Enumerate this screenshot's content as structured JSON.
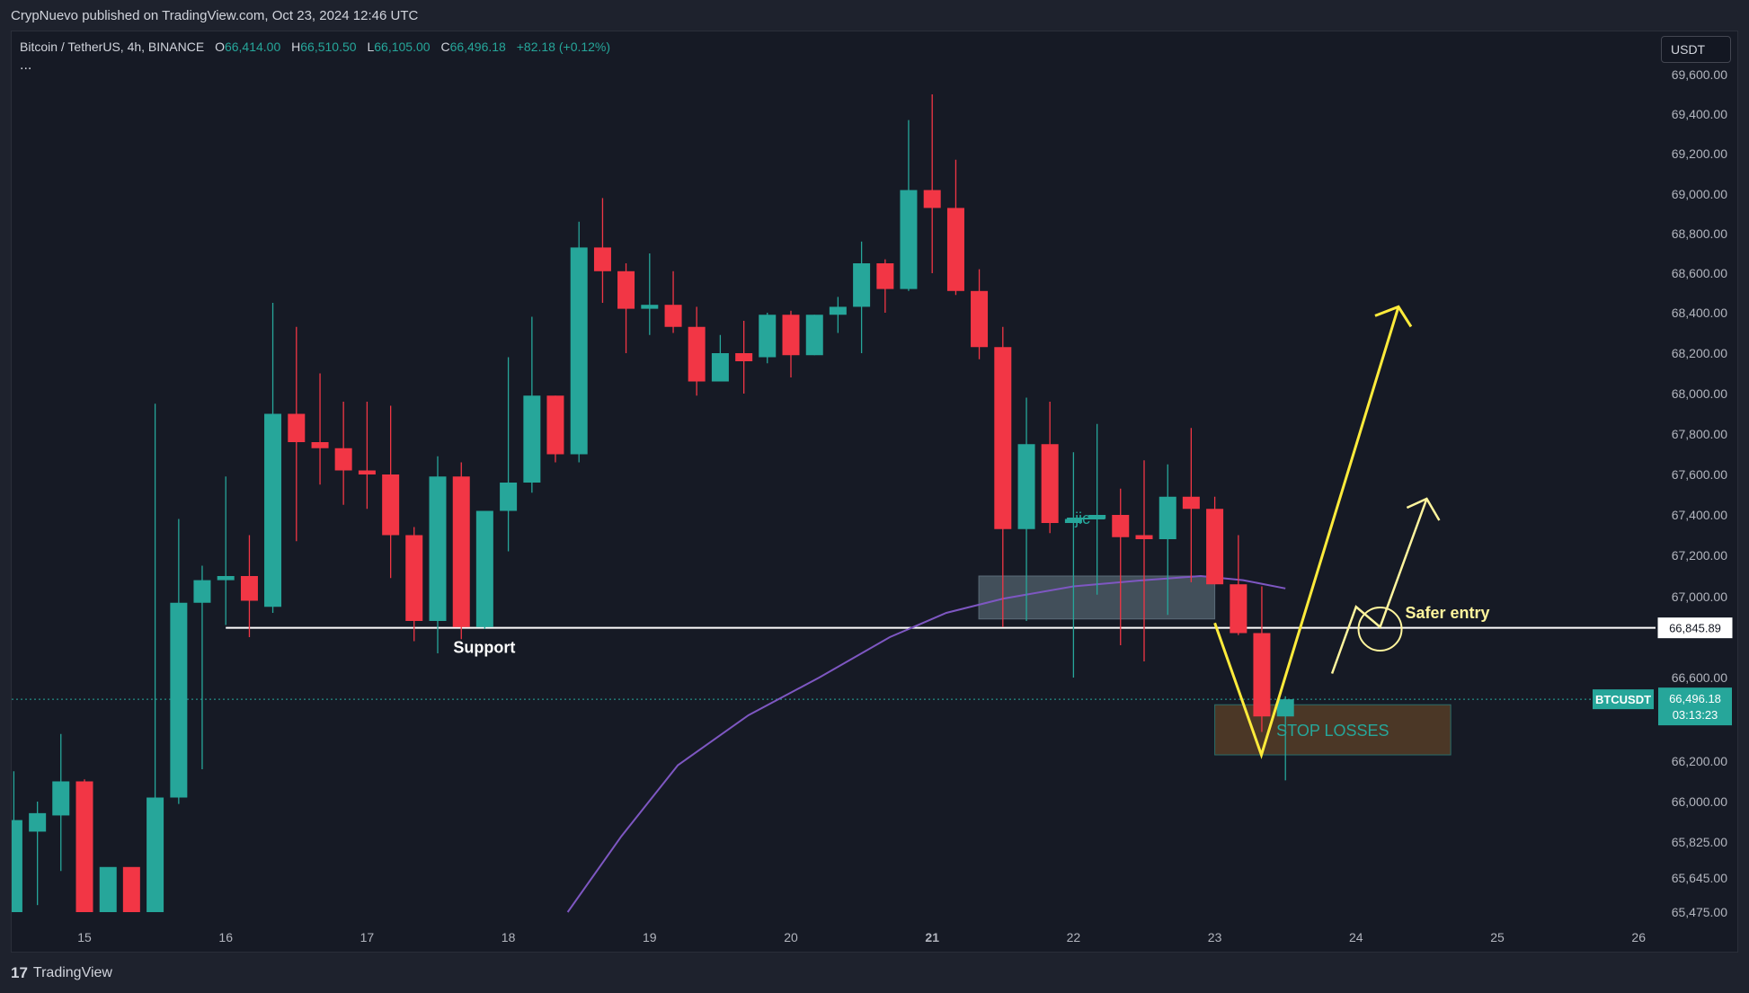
{
  "header": {
    "published_text": "CrypNuevo published on TradingView.com, Oct 23, 2024 12:46 UTC"
  },
  "legend": {
    "symbol": "Bitcoin / TetherUS, 4h, BINANCE",
    "open_label": "O",
    "open_value": "66,414.00",
    "high_label": "H",
    "high_value": "66,510.50",
    "low_label": "L",
    "low_value": "66,105.00",
    "close_label": "C",
    "close_value": "66,496.18",
    "change": "+82.18 (+0.12%)",
    "more": "..."
  },
  "currency_button": "USDT",
  "footer": {
    "logo": "17",
    "brand": "TradingView"
  },
  "colors": {
    "up": "#26a69a",
    "down": "#f23645",
    "ma": "#7e57c2",
    "annotation": "#ffeb3b",
    "support": "#ffffff"
  },
  "chart_data": {
    "type": "candlestick",
    "timeframe": "4h",
    "x_ticks": [
      "15",
      "16",
      "17",
      "18",
      "19",
      "20",
      "21",
      "22",
      "23",
      "24",
      "25",
      "26"
    ],
    "y_ticks": [
      69600,
      69400,
      69200,
      69000,
      68800,
      68600,
      68400,
      68200,
      68000,
      67800,
      67600,
      67400,
      67200,
      67000,
      66600,
      66200,
      66000,
      65825,
      65645,
      65475
    ],
    "y_tick_labels": [
      "69,600.00",
      "69,400.00",
      "69,200.00",
      "69,000.00",
      "68,800.00",
      "68,600.00",
      "68,400.00",
      "68,200.00",
      "68,000.00",
      "67,800.00",
      "67,600.00",
      "67,400.00",
      "67,200.00",
      "67,000.00",
      "66,600.00",
      "66,200.00",
      "66,000.00",
      "65,825.00",
      "65,645.00",
      "65,475.00"
    ],
    "candles": [
      {
        "day": 14.5,
        "o": 65475,
        "h": 66150,
        "l": 65475,
        "c": 65920
      },
      {
        "day": 14.667,
        "o": 65870,
        "h": 66000,
        "l": 65510,
        "c": 65950
      },
      {
        "day": 14.833,
        "o": 65940,
        "h": 66330,
        "l": 65680,
        "c": 66100
      },
      {
        "day": 15.0,
        "o": 66100,
        "h": 66110,
        "l": 65475,
        "c": 65475
      },
      {
        "day": 15.167,
        "o": 65475,
        "h": 65690,
        "l": 65475,
        "c": 65700
      },
      {
        "day": 15.333,
        "o": 65700,
        "h": 65690,
        "l": 65475,
        "c": 65475
      },
      {
        "day": 15.5,
        "o": 65475,
        "h": 67950,
        "l": 65475,
        "c": 66020
      },
      {
        "day": 15.667,
        "o": 66020,
        "h": 67380,
        "l": 65990,
        "c": 66970
      },
      {
        "day": 15.833,
        "o": 66970,
        "h": 67150,
        "l": 66160,
        "c": 67080
      },
      {
        "day": 16.0,
        "o": 67080,
        "h": 67590,
        "l": 66860,
        "c": 67100
      },
      {
        "day": 16.167,
        "o": 67100,
        "h": 67300,
        "l": 66800,
        "c": 66980
      },
      {
        "day": 16.333,
        "o": 66950,
        "h": 68450,
        "l": 66920,
        "c": 67900
      },
      {
        "day": 16.5,
        "o": 67900,
        "h": 68330,
        "l": 67270,
        "c": 67760
      },
      {
        "day": 16.667,
        "o": 67760,
        "h": 68100,
        "l": 67550,
        "c": 67730
      },
      {
        "day": 16.833,
        "o": 67730,
        "h": 67960,
        "l": 67450,
        "c": 67620
      },
      {
        "day": 17.0,
        "o": 67620,
        "h": 67960,
        "l": 67430,
        "c": 67600
      },
      {
        "day": 17.167,
        "o": 67600,
        "h": 67940,
        "l": 67090,
        "c": 67300
      },
      {
        "day": 17.333,
        "o": 67300,
        "h": 67340,
        "l": 66780,
        "c": 66880
      },
      {
        "day": 17.5,
        "o": 66880,
        "h": 67690,
        "l": 66720,
        "c": 67590
      },
      {
        "day": 17.667,
        "o": 67590,
        "h": 67660,
        "l": 66790,
        "c": 66850
      },
      {
        "day": 17.833,
        "o": 66850,
        "h": 67400,
        "l": 66840,
        "c": 67420
      },
      {
        "day": 18.0,
        "o": 67420,
        "h": 68180,
        "l": 67220,
        "c": 67560
      },
      {
        "day": 18.167,
        "o": 67560,
        "h": 68380,
        "l": 67510,
        "c": 67990
      },
      {
        "day": 18.333,
        "o": 67990,
        "h": 67990,
        "l": 67660,
        "c": 67700
      },
      {
        "day": 18.5,
        "o": 67700,
        "h": 68860,
        "l": 67660,
        "c": 68730
      },
      {
        "day": 18.667,
        "o": 68730,
        "h": 68980,
        "l": 68450,
        "c": 68610
      },
      {
        "day": 18.833,
        "o": 68610,
        "h": 68650,
        "l": 68200,
        "c": 68420
      },
      {
        "day": 19.0,
        "o": 68420,
        "h": 68700,
        "l": 68290,
        "c": 68440
      },
      {
        "day": 19.167,
        "o": 68440,
        "h": 68610,
        "l": 68300,
        "c": 68330
      },
      {
        "day": 19.333,
        "o": 68330,
        "h": 68430,
        "l": 67990,
        "c": 68060
      },
      {
        "day": 19.5,
        "o": 68060,
        "h": 68290,
        "l": 68070,
        "c": 68200
      },
      {
        "day": 19.667,
        "o": 68200,
        "h": 68360,
        "l": 68000,
        "c": 68160
      },
      {
        "day": 19.833,
        "o": 68180,
        "h": 68400,
        "l": 68150,
        "c": 68390
      },
      {
        "day": 20.0,
        "o": 68390,
        "h": 68410,
        "l": 68080,
        "c": 68190
      },
      {
        "day": 20.167,
        "o": 68190,
        "h": 68390,
        "l": 68190,
        "c": 68390
      },
      {
        "day": 20.333,
        "o": 68390,
        "h": 68480,
        "l": 68300,
        "c": 68430
      },
      {
        "day": 20.5,
        "o": 68430,
        "h": 68760,
        "l": 68200,
        "c": 68650
      },
      {
        "day": 20.667,
        "o": 68650,
        "h": 68670,
        "l": 68400,
        "c": 68520
      },
      {
        "day": 20.833,
        "o": 68520,
        "h": 69370,
        "l": 68510,
        "c": 69020
      },
      {
        "day": 21.0,
        "o": 69020,
        "h": 69500,
        "l": 68600,
        "c": 68930
      },
      {
        "day": 21.167,
        "o": 68930,
        "h": 69170,
        "l": 68490,
        "c": 68510
      },
      {
        "day": 21.333,
        "o": 68510,
        "h": 68620,
        "l": 68170,
        "c": 68230
      },
      {
        "day": 21.5,
        "o": 68230,
        "h": 68330,
        "l": 66850,
        "c": 67330
      },
      {
        "day": 21.667,
        "o": 67330,
        "h": 67980,
        "l": 66880,
        "c": 67750
      },
      {
        "day": 21.833,
        "o": 67750,
        "h": 67960,
        "l": 67310,
        "c": 67360
      },
      {
        "day": 22.0,
        "o": 67360,
        "h": 67710,
        "l": 66600,
        "c": 67380
      },
      {
        "day": 22.167,
        "o": 67380,
        "h": 67850,
        "l": 67010,
        "c": 67400
      },
      {
        "day": 22.333,
        "o": 67400,
        "h": 67530,
        "l": 66760,
        "c": 67290
      },
      {
        "day": 22.5,
        "o": 67300,
        "h": 67670,
        "l": 66680,
        "c": 67280
      },
      {
        "day": 22.667,
        "o": 67280,
        "h": 67650,
        "l": 66910,
        "c": 67490
      },
      {
        "day": 22.833,
        "o": 67490,
        "h": 67830,
        "l": 67070,
        "c": 67430
      },
      {
        "day": 23.0,
        "o": 67430,
        "h": 67490,
        "l": 67060,
        "c": 67060
      },
      {
        "day": 23.167,
        "o": 67060,
        "h": 67300,
        "l": 66810,
        "c": 66820
      },
      {
        "day": 23.333,
        "o": 66820,
        "h": 67050,
        "l": 66340,
        "c": 66414
      },
      {
        "day": 23.5,
        "o": 66414,
        "h": 66510.5,
        "l": 66105,
        "c": 66496.18
      }
    ],
    "moving_average": {
      "color": "#7e57c2",
      "points": [
        {
          "day": 18.42,
          "v": 65475
        },
        {
          "day": 18.8,
          "v": 65850
        },
        {
          "day": 19.2,
          "v": 66180
        },
        {
          "day": 19.7,
          "v": 66420
        },
        {
          "day": 20.2,
          "v": 66600
        },
        {
          "day": 20.7,
          "v": 66800
        },
        {
          "day": 21.1,
          "v": 66920
        },
        {
          "day": 21.5,
          "v": 66990
        },
        {
          "day": 22.0,
          "v": 67050
        },
        {
          "day": 22.5,
          "v": 67080
        },
        {
          "day": 22.9,
          "v": 67100
        },
        {
          "day": 23.2,
          "v": 67080
        },
        {
          "day": 23.5,
          "v": 67040
        }
      ]
    },
    "support": {
      "value": 66845.89,
      "label": "Support",
      "price_label": "66,845.89"
    },
    "current_price": {
      "value": 66496.18,
      "symbol": "BTCUSDT",
      "price_label": "66,496.18",
      "countdown": "03:13:23"
    },
    "zones": [
      {
        "day_from": 21.33,
        "day_to": 23.0,
        "top": 67100,
        "bottom": 66890,
        "label": "jic"
      },
      {
        "day_from": 23.0,
        "day_to": 24.67,
        "top": 66470,
        "bottom": 66230,
        "label": "STOP LOSSES"
      }
    ],
    "annotations": {
      "safer_entry_label": "Safer entry",
      "main_path": [
        {
          "day": 23.0,
          "v": 66870
        },
        {
          "day": 23.33,
          "v": 66230
        },
        {
          "day": 24.3,
          "v": 68430
        }
      ],
      "alt_path": [
        {
          "day": 23.83,
          "v": 66620
        },
        {
          "day": 24.0,
          "v": 66950
        },
        {
          "day": 24.17,
          "v": 66850
        },
        {
          "day": 24.5,
          "v": 67480
        }
      ],
      "entry_circle": {
        "day": 24.17,
        "v": 66840
      }
    },
    "ylim": [
      65475,
      69600
    ],
    "xlim": [
      14.5,
      26.5
    ],
    "grid": false
  }
}
